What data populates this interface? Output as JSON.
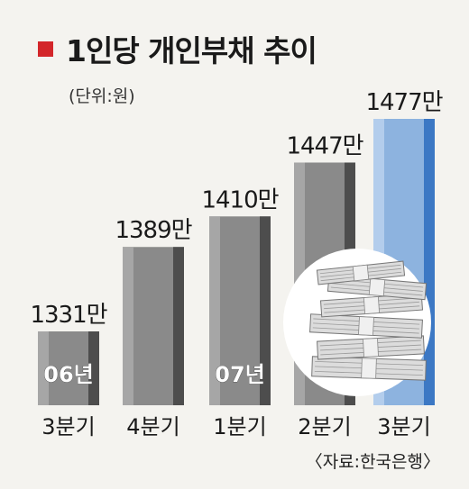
{
  "title": "1인당 개인부채 추이",
  "unit_label": "(단위:원)",
  "source": "〈자료:한국은행〉",
  "colors": {
    "title_marker": "#d3262a",
    "bar_gray": "#8a8a8a",
    "bar_gray_light": "#a6a6a6",
    "bar_gray_dark": "#4d4d4d",
    "bar_blue": "#8db3df",
    "bar_blue_light": "#b3cdec",
    "bar_blue_dark": "#3c78c4"
  },
  "chart_data": {
    "type": "bar",
    "title": "1인당 개인부채 추이",
    "unit": "원",
    "categories": [
      "3분기",
      "4분기",
      "1분기",
      "2분기",
      "3분기"
    ],
    "year_markers": [
      "06년",
      "",
      "07년",
      "",
      ""
    ],
    "values": [
      1331,
      1389,
      1410,
      1447,
      1477
    ],
    "value_labels": [
      "1331만",
      "1389만",
      "1410만",
      "1447만",
      "1477만"
    ],
    "highlight_index": 4,
    "grid": false,
    "legend": "none"
  },
  "illustration": {
    "icon": "money-stack-icon"
  }
}
